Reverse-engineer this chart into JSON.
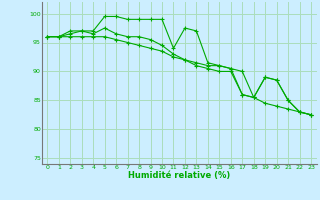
{
  "xlabel": "Humidité relative (%)",
  "ylabel": "",
  "background_color": "#cceeff",
  "grid_color": "#aaddbb",
  "line_color": "#00aa00",
  "ylim": [
    74,
    102
  ],
  "xlim": [
    -0.5,
    23.5
  ],
  "yticks": [
    75,
    80,
    85,
    90,
    95,
    100
  ],
  "xticks": [
    0,
    1,
    2,
    3,
    4,
    5,
    6,
    7,
    8,
    9,
    10,
    11,
    12,
    13,
    14,
    15,
    16,
    17,
    18,
    19,
    20,
    21,
    22,
    23
  ],
  "series": [
    [
      96,
      96,
      97,
      97,
      97,
      99.5,
      99.5,
      99,
      99,
      99,
      99,
      94,
      97.5,
      97,
      91.5,
      91,
      90.5,
      86,
      85.5,
      89,
      88.5,
      85,
      83,
      82.5
    ],
    [
      96,
      96,
      96.5,
      97,
      96.5,
      97.5,
      96.5,
      96,
      96,
      95.5,
      94.5,
      93,
      92,
      91.5,
      91,
      91,
      90.5,
      90,
      85.5,
      89,
      88.5,
      85,
      83,
      82.5
    ],
    [
      96,
      96,
      96,
      96,
      96,
      96,
      95.5,
      95,
      94.5,
      94,
      93.5,
      92.5,
      92,
      91,
      90.5,
      90,
      90,
      86,
      85.5,
      84.5,
      84,
      83.5,
      83,
      82.5
    ]
  ]
}
